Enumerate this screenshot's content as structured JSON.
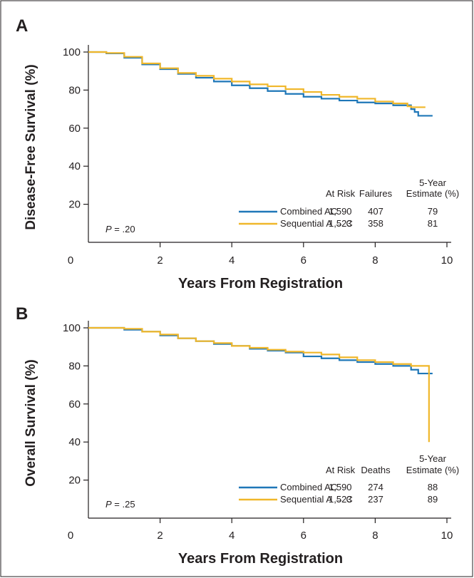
{
  "colors": {
    "combined": "#1f77b8",
    "sequential": "#f0b72a",
    "axis": "#231f20",
    "frame": "#231f20"
  },
  "chart_data": [
    {
      "type": "line",
      "subtype": "kaplan-meier step curves",
      "panel_label": "A",
      "ylabel": "Disease-Free Survival (%)",
      "xlabel": "Years From Registration",
      "xlim": [
        0,
        10
      ],
      "ylim": [
        0,
        100
      ],
      "x_ticks": [
        "0",
        "2",
        "4",
        "6",
        "8",
        "10"
      ],
      "y_ticks": [
        "20",
        "40",
        "60",
        "80",
        "100"
      ],
      "grid": false,
      "p_value": {
        "prefix": "P",
        "text": " = .20"
      },
      "table": {
        "headers": [
          "At Risk",
          "Failures",
          "Estimate (%)"
        ],
        "header_top": "5-Year",
        "rows": [
          {
            "series": "Combined AC",
            "at_risk": "1,590",
            "events": "407",
            "estimate": "79"
          },
          {
            "series": "Sequential A → C",
            "at_risk": "1,523",
            "events": "358",
            "estimate": "81"
          }
        ]
      },
      "series": [
        {
          "name": "Combined AC",
          "color": "#1f77b8",
          "x": [
            0,
            0.5,
            1,
            1.5,
            2,
            2.5,
            3,
            3.5,
            4,
            4.5,
            5,
            5.5,
            6,
            6.5,
            7,
            7.5,
            8,
            8.5,
            8.9,
            9.0,
            9.1,
            9.2,
            9.6
          ],
          "y": [
            100,
            99.3,
            97,
            93.5,
            91,
            88.5,
            86.5,
            84.5,
            82.5,
            81,
            79.5,
            78,
            76.5,
            75.5,
            74.5,
            73.5,
            73,
            72,
            72,
            70,
            68.5,
            66.5,
            66.5
          ]
        },
        {
          "name": "Sequential A → C",
          "color": "#f0b72a",
          "x": [
            0,
            0.5,
            1,
            1.5,
            2,
            2.5,
            3,
            3.5,
            4,
            4.5,
            5,
            5.5,
            6,
            6.5,
            7,
            7.5,
            8,
            8.5,
            8.9,
            9.0,
            9.4
          ],
          "y": [
            100,
            99.5,
            97.5,
            94,
            91.5,
            89,
            87.5,
            86,
            84.5,
            83,
            82,
            80.5,
            79,
            77.5,
            76.5,
            75.5,
            74,
            73,
            71.5,
            71,
            71
          ]
        }
      ]
    },
    {
      "type": "line",
      "subtype": "kaplan-meier step curves",
      "panel_label": "B",
      "ylabel": "Overall Survival (%)",
      "xlabel": "Years From Registration",
      "xlim": [
        0,
        10
      ],
      "ylim": [
        0,
        100
      ],
      "x_ticks": [
        "0",
        "2",
        "4",
        "6",
        "8",
        "10"
      ],
      "y_ticks": [
        "20",
        "40",
        "60",
        "80",
        "100"
      ],
      "grid": false,
      "p_value": {
        "prefix": "P",
        "text": " = .25"
      },
      "table": {
        "headers": [
          "At Risk",
          "Deaths",
          "Estimate (%)"
        ],
        "header_top": "5-Year",
        "rows": [
          {
            "series": "Combined AC",
            "at_risk": "1,590",
            "events": "274",
            "estimate": "88"
          },
          {
            "series": "Sequential A → C",
            "at_risk": "1,523",
            "events": "237",
            "estimate": "89"
          }
        ]
      },
      "series": [
        {
          "name": "Combined AC",
          "color": "#1f77b8",
          "x": [
            0,
            0.5,
            1,
            1.5,
            2,
            2.5,
            3,
            3.5,
            4,
            4.5,
            5,
            5.5,
            6,
            6.5,
            7,
            7.5,
            8,
            8.5,
            9.0,
            9.2,
            9.6
          ],
          "y": [
            100,
            100,
            99,
            98,
            96,
            94.5,
            93,
            91.5,
            90.5,
            89,
            88,
            87,
            85,
            84,
            83,
            82,
            81,
            80,
            78,
            76,
            76
          ]
        },
        {
          "name": "Sequential A → C",
          "color": "#f0b72a",
          "x": [
            0,
            0.5,
            1,
            1.5,
            2,
            2.5,
            3,
            3.5,
            4,
            4.5,
            5,
            5.5,
            6,
            6.5,
            7,
            7.5,
            8,
            8.5,
            9.0,
            9.5,
            9.5
          ],
          "y": [
            100,
            100,
            99.5,
            98,
            96.5,
            94.5,
            93,
            92,
            90.5,
            89.5,
            88.5,
            87.5,
            87,
            86,
            84.5,
            83,
            82,
            81,
            80,
            80,
            40
          ]
        }
      ]
    }
  ]
}
